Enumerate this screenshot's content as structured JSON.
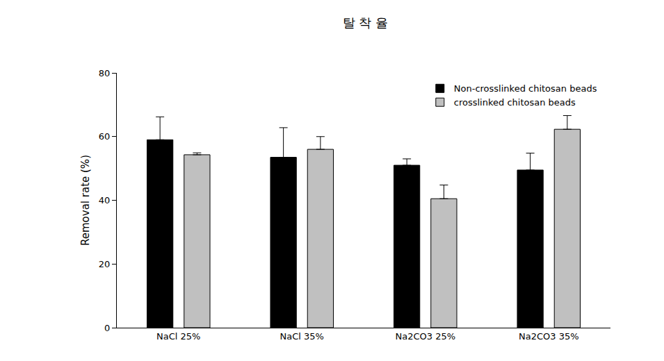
{
  "chart_data": {
    "type": "bar",
    "title": "탈 착 율",
    "y_label": "Removal rate (%)",
    "categories": [
      "NaCl 25%",
      "NaCl 35%",
      "Na2CO3 25%",
      "Na2CO3 35%"
    ],
    "series": [
      {
        "name": "Non-crosslinked chitosan beads",
        "color": "#000000",
        "values": [
          59,
          53.5,
          51,
          49.5
        ],
        "errors": [
          7.2,
          9.3,
          2,
          5.3
        ]
      },
      {
        "name": "crosslinked chitosan beads",
        "color": "#c0c0c0",
        "values": [
          54.3,
          56,
          40.5,
          62.3
        ],
        "errors": [
          0.6,
          4,
          4.3,
          4.3
        ]
      }
    ],
    "ylim": [
      0,
      80
    ],
    "yticks": [
      0,
      20,
      40,
      60,
      80
    ],
    "grid": false,
    "legend": "upper right"
  }
}
